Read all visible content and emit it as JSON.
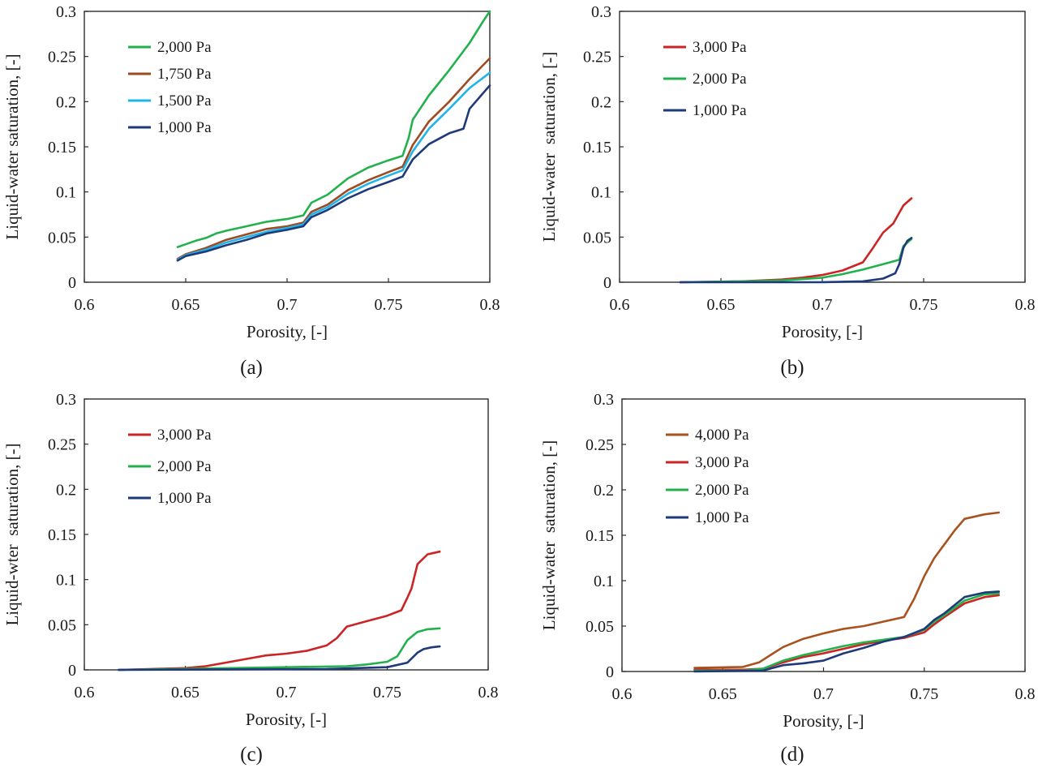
{
  "colors": {
    "p4000": "#a9521f",
    "p3000": "#cc2424",
    "p2000": "#23b14d",
    "p1750": "#9e4a22",
    "p1500": "#1fb4ea",
    "p1000": "#1f3a7a"
  },
  "chart_data": [
    {
      "id": "a",
      "type": "line",
      "panel_label": "(a)",
      "xlabel": "Porosity, [-]",
      "ylabel": "Liquid-water saturation, [-]",
      "xlim": [
        0.6,
        0.8
      ],
      "ylim": [
        0,
        0.3
      ],
      "xticks": [
        "0.6",
        "0.65",
        "0.7",
        "0.75",
        "0.8"
      ],
      "yticks": [
        "0",
        "0.05",
        "0.1",
        "0.15",
        "0.2",
        "0.25",
        "0.3"
      ],
      "legend_position": "top-left",
      "series": [
        {
          "name": "2,000 Pa",
          "color": "#23b14d",
          "x": [
            0.646,
            0.65,
            0.655,
            0.66,
            0.665,
            0.67,
            0.68,
            0.69,
            0.7,
            0.708,
            0.712,
            0.72,
            0.73,
            0.74,
            0.75,
            0.757,
            0.76,
            0.762,
            0.77,
            0.78,
            0.79,
            0.797,
            0.8
          ],
          "y": [
            0.039,
            0.042,
            0.046,
            0.049,
            0.054,
            0.057,
            0.062,
            0.067,
            0.07,
            0.074,
            0.088,
            0.097,
            0.115,
            0.127,
            0.135,
            0.14,
            0.16,
            0.18,
            0.207,
            0.235,
            0.265,
            0.29,
            0.3
          ]
        },
        {
          "name": "1,750 Pa",
          "color": "#9e4a22",
          "x": [
            0.646,
            0.65,
            0.66,
            0.67,
            0.68,
            0.69,
            0.7,
            0.708,
            0.712,
            0.72,
            0.73,
            0.74,
            0.75,
            0.757,
            0.762,
            0.77,
            0.78,
            0.79,
            0.8
          ],
          "y": [
            0.026,
            0.031,
            0.038,
            0.047,
            0.053,
            0.059,
            0.062,
            0.066,
            0.078,
            0.086,
            0.102,
            0.113,
            0.122,
            0.128,
            0.152,
            0.178,
            0.2,
            0.225,
            0.248
          ]
        },
        {
          "name": "1,500 Pa",
          "color": "#1fb4ea",
          "x": [
            0.646,
            0.65,
            0.66,
            0.67,
            0.68,
            0.69,
            0.7,
            0.708,
            0.712,
            0.72,
            0.73,
            0.74,
            0.75,
            0.757,
            0.762,
            0.77,
            0.78,
            0.79,
            0.8
          ],
          "y": [
            0.025,
            0.03,
            0.036,
            0.044,
            0.05,
            0.056,
            0.06,
            0.064,
            0.075,
            0.083,
            0.098,
            0.109,
            0.118,
            0.124,
            0.145,
            0.17,
            0.192,
            0.215,
            0.232
          ]
        },
        {
          "name": "1,000 Pa",
          "color": "#1f3a7a",
          "x": [
            0.646,
            0.65,
            0.66,
            0.67,
            0.68,
            0.69,
            0.7,
            0.708,
            0.712,
            0.72,
            0.73,
            0.74,
            0.75,
            0.757,
            0.762,
            0.77,
            0.78,
            0.787,
            0.79,
            0.8
          ],
          "y": [
            0.024,
            0.029,
            0.034,
            0.041,
            0.047,
            0.054,
            0.058,
            0.062,
            0.072,
            0.08,
            0.093,
            0.103,
            0.111,
            0.117,
            0.136,
            0.153,
            0.165,
            0.17,
            0.192,
            0.218
          ]
        }
      ]
    },
    {
      "id": "b",
      "type": "line",
      "panel_label": "(b)",
      "xlabel": "Porosity, [-]",
      "ylabel": "Liquid-water  saturation, [-]",
      "xlim": [
        0.6,
        0.8
      ],
      "ylim": [
        0,
        0.3
      ],
      "xticks": [
        "0.6",
        "0.65",
        "0.7",
        "0.75",
        "0.8"
      ],
      "yticks": [
        "0",
        "0.05",
        "0.1",
        "0.15",
        "0.2",
        "0.25",
        "0.3"
      ],
      "legend_position": "top-left",
      "series": [
        {
          "name": "3,000 Pa",
          "color": "#cc2424",
          "x": [
            0.63,
            0.66,
            0.68,
            0.69,
            0.7,
            0.71,
            0.72,
            0.725,
            0.73,
            0.735,
            0.74,
            0.744
          ],
          "y": [
            0,
            0.001,
            0.003,
            0.005,
            0.008,
            0.013,
            0.022,
            0.038,
            0.055,
            0.065,
            0.085,
            0.093
          ]
        },
        {
          "name": "2,000 Pa",
          "color": "#23b14d",
          "x": [
            0.63,
            0.66,
            0.68,
            0.7,
            0.71,
            0.72,
            0.73,
            0.738,
            0.74,
            0.744
          ],
          "y": [
            0,
            0.001,
            0.002,
            0.005,
            0.009,
            0.014,
            0.02,
            0.025,
            0.04,
            0.048
          ]
        },
        {
          "name": "1,000 Pa",
          "color": "#1f3a7a",
          "x": [
            0.63,
            0.7,
            0.72,
            0.73,
            0.736,
            0.738,
            0.74,
            0.742,
            0.744
          ],
          "y": [
            0,
            0,
            0.001,
            0.004,
            0.01,
            0.02,
            0.038,
            0.046,
            0.049
          ]
        }
      ]
    },
    {
      "id": "c",
      "type": "line",
      "panel_label": "(c)",
      "xlabel": "Porosity, [-]",
      "ylabel": "Liquid-wter  saturation, [-]",
      "xlim": [
        0.6,
        0.8
      ],
      "ylim": [
        0,
        0.3
      ],
      "xticks": [
        "0.6",
        "0.65",
        "0.7",
        "0.75",
        "0.8"
      ],
      "yticks": [
        "0",
        "0.05",
        "0.1",
        "0.15",
        "0.2",
        "0.25",
        "0.3"
      ],
      "legend_position": "top-left",
      "series": [
        {
          "name": "3,000 Pa",
          "color": "#cc2424",
          "x": [
            0.617,
            0.65,
            0.66,
            0.67,
            0.68,
            0.69,
            0.7,
            0.71,
            0.72,
            0.725,
            0.73,
            0.74,
            0.75,
            0.757,
            0.76,
            0.762,
            0.765,
            0.77,
            0.776
          ],
          "y": [
            0,
            0.002,
            0.004,
            0.008,
            0.012,
            0.016,
            0.018,
            0.021,
            0.027,
            0.035,
            0.048,
            0.054,
            0.06,
            0.066,
            0.08,
            0.09,
            0.117,
            0.128,
            0.131
          ]
        },
        {
          "name": "2,000 Pa",
          "color": "#23b14d",
          "x": [
            0.617,
            0.7,
            0.73,
            0.74,
            0.75,
            0.755,
            0.76,
            0.765,
            0.77,
            0.776
          ],
          "y": [
            0,
            0.003,
            0.004,
            0.006,
            0.009,
            0.015,
            0.033,
            0.042,
            0.045,
            0.046
          ]
        },
        {
          "name": "1,000 Pa",
          "color": "#1f3a7a",
          "x": [
            0.617,
            0.72,
            0.75,
            0.76,
            0.765,
            0.768,
            0.772,
            0.776
          ],
          "y": [
            0,
            0.001,
            0.003,
            0.008,
            0.019,
            0.023,
            0.025,
            0.026
          ]
        }
      ]
    },
    {
      "id": "d",
      "type": "line",
      "panel_label": "(d)",
      "xlabel": "Porosity, [-]",
      "ylabel": "Liquid-water  saturation, [-]",
      "xlim": [
        0.6,
        0.8
      ],
      "ylim": [
        0,
        0.3
      ],
      "xticks": [
        "0.6",
        "0.65",
        "0.7",
        "0.75",
        "0.8"
      ],
      "yticks": [
        "0",
        "0.05",
        "0.1",
        "0.15",
        "0.2",
        "0.25",
        "0.3"
      ],
      "legend_position": "top-left",
      "series": [
        {
          "name": "4,000 Pa",
          "color": "#a9521f",
          "x": [
            0.636,
            0.66,
            0.668,
            0.675,
            0.68,
            0.69,
            0.7,
            0.71,
            0.72,
            0.73,
            0.74,
            0.745,
            0.75,
            0.755,
            0.76,
            0.765,
            0.77,
            0.78,
            0.787
          ],
          "y": [
            0.004,
            0.005,
            0.01,
            0.02,
            0.027,
            0.036,
            0.042,
            0.047,
            0.05,
            0.055,
            0.06,
            0.08,
            0.105,
            0.125,
            0.14,
            0.155,
            0.168,
            0.173,
            0.175
          ]
        },
        {
          "name": "3,000 Pa",
          "color": "#cc2424",
          "x": [
            0.636,
            0.66,
            0.67,
            0.68,
            0.69,
            0.7,
            0.71,
            0.72,
            0.73,
            0.74,
            0.75,
            0.755,
            0.76,
            0.77,
            0.78,
            0.787
          ],
          "y": [
            0.002,
            0.002,
            0.003,
            0.01,
            0.016,
            0.02,
            0.025,
            0.03,
            0.034,
            0.037,
            0.043,
            0.052,
            0.06,
            0.075,
            0.082,
            0.084
          ]
        },
        {
          "name": "2,000 Pa",
          "color": "#23b14d",
          "x": [
            0.636,
            0.66,
            0.67,
            0.68,
            0.69,
            0.7,
            0.71,
            0.72,
            0.73,
            0.74,
            0.75,
            0.755,
            0.76,
            0.77,
            0.78,
            0.787
          ],
          "y": [
            0.001,
            0.001,
            0.003,
            0.012,
            0.018,
            0.023,
            0.028,
            0.032,
            0.035,
            0.038,
            0.046,
            0.055,
            0.062,
            0.078,
            0.085,
            0.086
          ]
        },
        {
          "name": "1,000 Pa",
          "color": "#1f3a7a",
          "x": [
            0.636,
            0.67,
            0.675,
            0.68,
            0.69,
            0.7,
            0.71,
            0.72,
            0.73,
            0.74,
            0.75,
            0.755,
            0.76,
            0.77,
            0.78,
            0.787
          ],
          "y": [
            0,
            0.001,
            0.004,
            0.007,
            0.009,
            0.012,
            0.02,
            0.026,
            0.033,
            0.038,
            0.047,
            0.057,
            0.064,
            0.082,
            0.087,
            0.088
          ]
        }
      ]
    }
  ]
}
